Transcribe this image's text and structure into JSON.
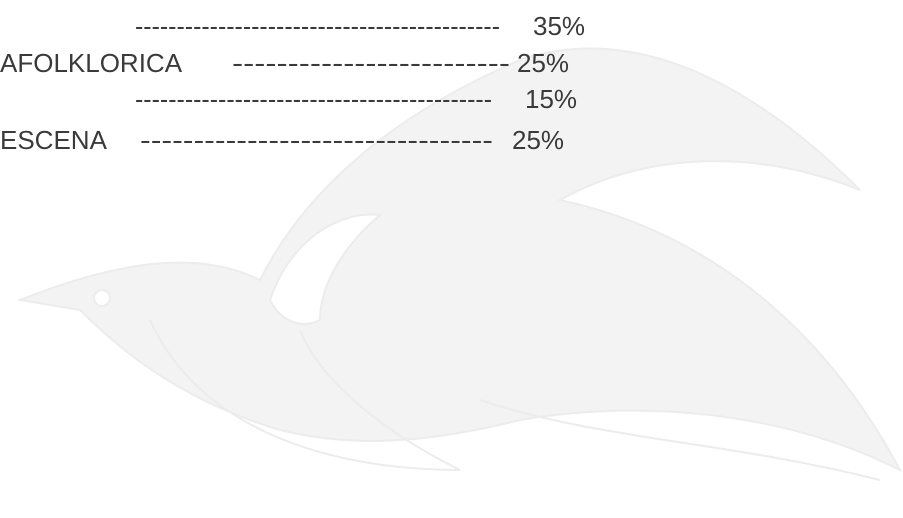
{
  "rows": [
    {
      "leader": "--------------------------------------------",
      "value": "35%"
    },
    {
      "label": "AFOLKLORICA",
      "leader": "-------------------------",
      "value": "25%"
    },
    {
      "leader": "-------------------------------------------",
      "value": "15%"
    },
    {
      "label": "ESCENA",
      "leader": "---------------------------------",
      "value": "25%"
    }
  ]
}
